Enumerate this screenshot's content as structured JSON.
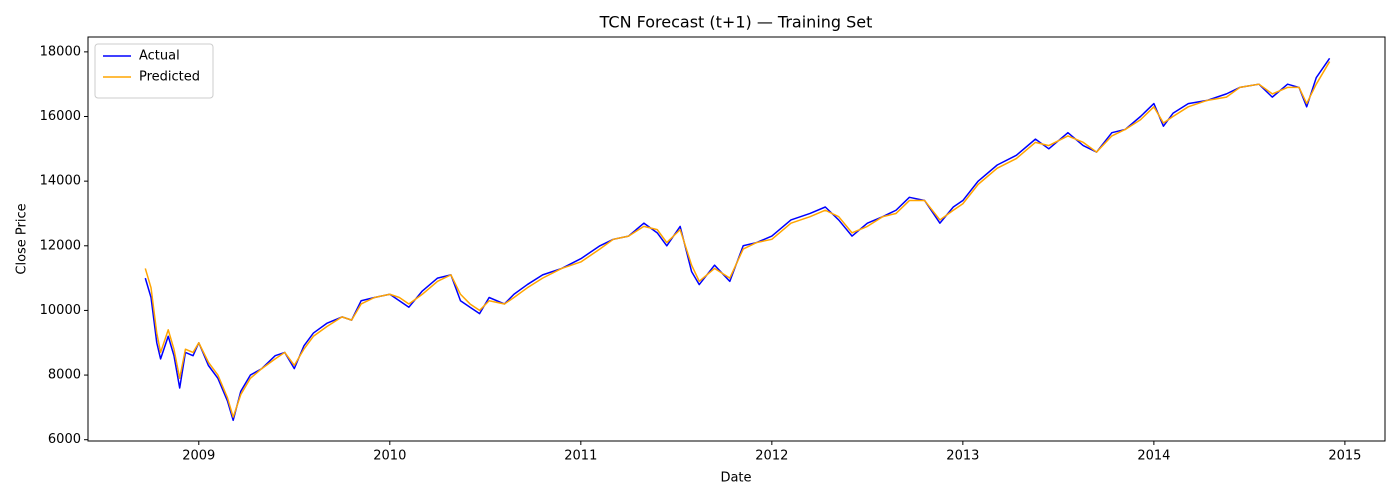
{
  "chart_data": {
    "type": "line",
    "title": "TCN Forecast (t+1) — Training Set",
    "x_label": "Date",
    "y_label": "Close Price",
    "x": [
      2008.72,
      2008.75,
      2008.78,
      2008.8,
      2008.84,
      2008.87,
      2008.9,
      2008.93,
      2008.97,
      2009.0,
      2009.05,
      2009.1,
      2009.15,
      2009.18,
      2009.22,
      2009.27,
      2009.33,
      2009.4,
      2009.45,
      2009.5,
      2009.55,
      2009.6,
      2009.67,
      2009.75,
      2009.8,
      2009.85,
      2009.92,
      2010.0,
      2010.05,
      2010.1,
      2010.17,
      2010.25,
      2010.32,
      2010.37,
      2010.42,
      2010.47,
      2010.52,
      2010.6,
      2010.65,
      2010.72,
      2010.8,
      2010.9,
      2011.0,
      2011.1,
      2011.17,
      2011.25,
      2011.33,
      2011.4,
      2011.45,
      2011.52,
      2011.58,
      2011.62,
      2011.7,
      2011.78,
      2011.85,
      2011.92,
      2012.0,
      2012.1,
      2012.2,
      2012.28,
      2012.35,
      2012.42,
      2012.5,
      2012.58,
      2012.65,
      2012.72,
      2012.8,
      2012.88,
      2012.95,
      2013.0,
      2013.08,
      2013.18,
      2013.28,
      2013.38,
      2013.45,
      2013.55,
      2013.63,
      2013.7,
      2013.78,
      2013.85,
      2013.93,
      2014.0,
      2014.05,
      2014.1,
      2014.18,
      2014.28,
      2014.38,
      2014.45,
      2014.55,
      2014.62,
      2014.7,
      2014.76,
      2014.8,
      2014.85,
      2014.92
    ],
    "series": [
      {
        "name": "Actual",
        "color": "#0000ff",
        "values": [
          11000,
          10400,
          9000,
          8500,
          9200,
          8600,
          7600,
          8700,
          8600,
          9000,
          8300,
          7900,
          7200,
          6600,
          7500,
          8000,
          8200,
          8600,
          8700,
          8200,
          8900,
          9300,
          9600,
          9800,
          9700,
          10300,
          10400,
          10500,
          10300,
          10100,
          10600,
          11000,
          11100,
          10300,
          10100,
          9900,
          10400,
          10200,
          10500,
          10800,
          11100,
          11300,
          11600,
          12000,
          12200,
          12300,
          12700,
          12400,
          12000,
          12600,
          11200,
          10800,
          11400,
          10900,
          12000,
          12100,
          12300,
          12800,
          13000,
          13200,
          12800,
          12300,
          12700,
          12900,
          13100,
          13500,
          13400,
          12700,
          13200,
          13400,
          14000,
          14500,
          14800,
          15300,
          15000,
          15500,
          15100,
          14900,
          15500,
          15600,
          16000,
          16400,
          15700,
          16100,
          16400,
          16500,
          16700,
          16900,
          17000,
          16600,
          17000,
          16900,
          16300,
          17200,
          17800
        ]
      },
      {
        "name": "Predicted",
        "color": "#ffa500",
        "values": [
          11300,
          10700,
          9300,
          8700,
          9400,
          8800,
          7900,
          8800,
          8700,
          9000,
          8400,
          8000,
          7300,
          6700,
          7400,
          7900,
          8200,
          8500,
          8700,
          8300,
          8800,
          9200,
          9500,
          9800,
          9700,
          10200,
          10400,
          10500,
          10400,
          10200,
          10500,
          10900,
          11100,
          10500,
          10200,
          10000,
          10300,
          10200,
          10400,
          10700,
          11000,
          11300,
          11500,
          11900,
          12200,
          12300,
          12600,
          12500,
          12100,
          12500,
          11400,
          10900,
          11300,
          11000,
          11900,
          12100,
          12200,
          12700,
          12900,
          13100,
          12900,
          12400,
          12600,
          12900,
          13000,
          13400,
          13400,
          12800,
          13100,
          13300,
          13900,
          14400,
          14700,
          15200,
          15100,
          15400,
          15200,
          14900,
          15400,
          15600,
          15900,
          16300,
          15800,
          16000,
          16300,
          16500,
          16600,
          16900,
          17000,
          16700,
          16900,
          16900,
          16400,
          17000,
          17700
        ]
      }
    ],
    "xlim": [
      2008.42,
      2015.21
    ],
    "xticks": [
      2009,
      2010,
      2011,
      2012,
      2013,
      2014,
      2015
    ],
    "ylim": [
      5960,
      18460
    ],
    "yticks": [
      6000,
      8000,
      10000,
      12000,
      14000,
      16000,
      18000
    ],
    "legend": "upper left",
    "grid": false
  }
}
